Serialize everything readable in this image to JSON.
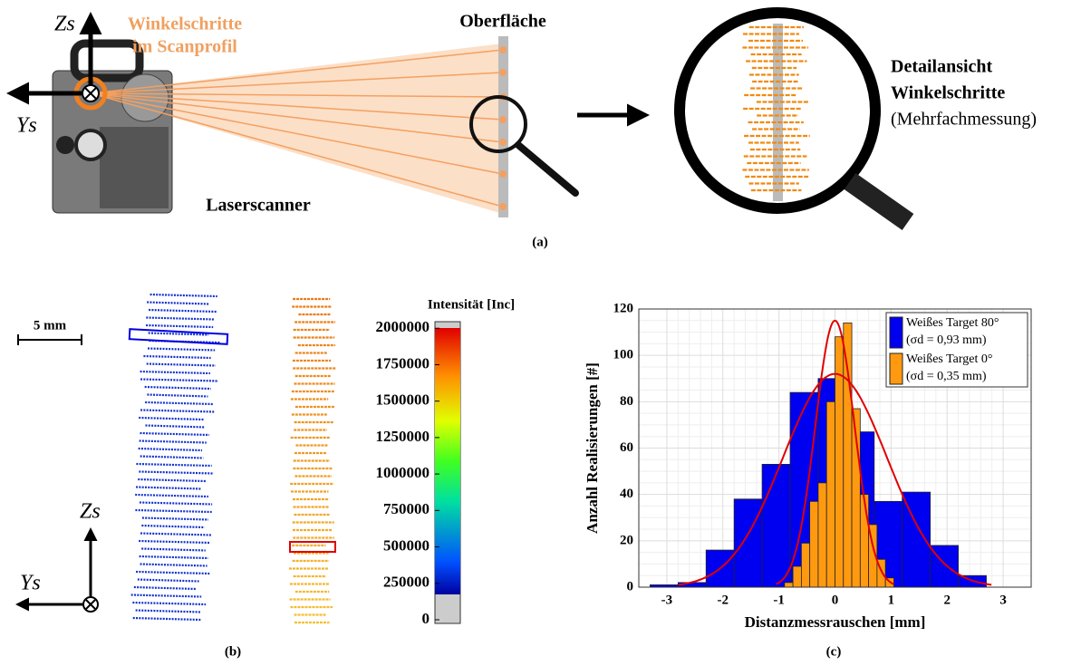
{
  "panel_a": {
    "beam_label": [
      "Winkelschritte",
      "im Scanprofil"
    ],
    "surface_label": "Oberfläche",
    "scanner_label": "Laserscanner",
    "detail_label": [
      "Detailansicht",
      "Winkelschritte",
      "(Mehrfachmessung)"
    ],
    "axis_z": "Zs",
    "axis_y": "Ys",
    "caption": "(a)"
  },
  "panel_b": {
    "scale_label": "5 mm",
    "axis_z": "Zs",
    "axis_y": "Ys",
    "colorbar": {
      "label": "Intensität [Inc]",
      "lim": [
        -25000,
        2045000
      ],
      "ticks": [
        0,
        250000,
        500000,
        750000,
        1000000,
        1250000,
        1500000,
        1750000,
        2000000
      ]
    },
    "caption": "(b)"
  },
  "chart_data": {
    "type": "histogram",
    "xlabel": "Distanzmessrauschen [mm]",
    "ylabel": "Anzahl Realisierungen [#]",
    "xlim": [
      -3.5,
      3.5
    ],
    "ylim": [
      0,
      120
    ],
    "xticks": [
      -3,
      -2,
      -1,
      0,
      1,
      2,
      3
    ],
    "yticks": [
      0,
      20,
      40,
      60,
      80,
      100,
      120
    ],
    "grid": true,
    "legend": "upper right",
    "fit_color": "#e00000",
    "series": [
      {
        "name": "Weißes Target 80°",
        "note": "(σd = 0,93 mm)",
        "color": "#0000f0",
        "bins": [
          -3.3,
          -2.8,
          -2.3,
          -1.8,
          -1.3,
          -0.8,
          -0.3,
          0.2,
          0.7,
          1.2,
          1.7,
          2.2,
          2.7
        ],
        "values": [
          1,
          2,
          16,
          38,
          53,
          84,
          90,
          67,
          37,
          41,
          18,
          5
        ],
        "fit": {
          "mean": 0,
          "sigma": 0.93,
          "peak": 92
        }
      },
      {
        "name": "Weißes Target 0°",
        "note": "(σd = 0,35 mm)",
        "color": "#ff9a10",
        "bins": [
          -0.9,
          -0.75,
          -0.6,
          -0.45,
          -0.3,
          -0.15,
          0,
          0.15,
          0.3,
          0.45,
          0.6,
          0.75,
          0.9,
          1.05
        ],
        "values": [
          2,
          9,
          19,
          37,
          45,
          80,
          108,
          114,
          77,
          40,
          27,
          12,
          4
        ],
        "fit": {
          "mean": 0,
          "sigma": 0.35,
          "peak": 115
        }
      }
    ]
  },
  "caption_c": "(c)"
}
